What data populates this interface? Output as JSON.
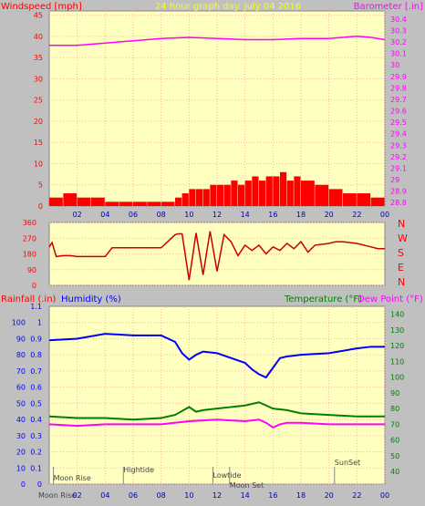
{
  "chart_data": [
    {
      "type": "line",
      "title": "24 hour graph day.  July 04 2016",
      "left_axis_label": "Windspeed [mph]",
      "right_axis_label": "Barometer [.in]",
      "x_ticks": [
        "02",
        "04",
        "06",
        "08",
        "10",
        "12",
        "14",
        "16",
        "18",
        "20",
        "22",
        "00"
      ],
      "y_left_ticks": [
        0,
        5,
        10,
        15,
        20,
        25,
        30,
        35,
        40,
        45
      ],
      "y_left_range": [
        0,
        46
      ],
      "y_right_ticks": [
        "28.8",
        "28.9",
        "29",
        "29.1",
        "29.2",
        "29.3",
        "29.4",
        "29.5",
        "29.6",
        "29.7",
        "29.8",
        "29.9",
        "30",
        "30.1",
        "30.2",
        "30.3",
        "30.4"
      ],
      "y_right_range": [
        28.77,
        30.47
      ],
      "grid": true,
      "series": [
        {
          "label_key": "left_axis_label",
          "color": "#ff0000",
          "style": "bars",
          "x": [
            0,
            1,
            2,
            3,
            4,
            5,
            6,
            7,
            8,
            9,
            9.5,
            10,
            10.5,
            11,
            11.5,
            12,
            12.5,
            13,
            13.5,
            14,
            14.5,
            15,
            15.5,
            16,
            16.5,
            17,
            17.5,
            18,
            19,
            20,
            21,
            22,
            23,
            24
          ],
          "y": [
            2,
            3,
            2,
            2,
            1,
            1,
            1,
            1,
            1,
            2,
            3,
            4,
            4,
            4,
            5,
            5,
            5,
            6,
            5,
            6,
            7,
            6,
            7,
            7,
            8,
            6,
            7,
            6,
            5,
            4,
            3,
            3,
            2,
            2
          ]
        },
        {
          "label_key": "right_axis_label",
          "color": "#ff00ff",
          "x": [
            0,
            2,
            4,
            6,
            8,
            10,
            12,
            14,
            16,
            18,
            20,
            22,
            23,
            24
          ],
          "y": [
            30.17,
            30.17,
            30.19,
            30.21,
            30.23,
            30.24,
            30.23,
            30.22,
            30.22,
            30.23,
            30.23,
            30.25,
            30.24,
            30.22
          ]
        }
      ]
    },
    {
      "type": "line",
      "title": "",
      "right_labels": [
        "N",
        "W",
        "S",
        "E",
        "N"
      ],
      "y_ticks": [
        0,
        90,
        180,
        270,
        360
      ],
      "y_range": [
        0,
        360
      ],
      "x_range": [
        0,
        24
      ],
      "grid": true,
      "series": [
        {
          "color": "#cc0000",
          "x": [
            0,
            0.2,
            0.5,
            1,
            1.5,
            2,
            3,
            4,
            4.5,
            5,
            6,
            7,
            8,
            9,
            9.2,
            9.5,
            10,
            10.5,
            11,
            11.5,
            12,
            12.5,
            13,
            13.5,
            14,
            14.5,
            15,
            15.5,
            16,
            16.5,
            17,
            17.5,
            18,
            18.5,
            19,
            20,
            20.5,
            21,
            22,
            23,
            23.5,
            24
          ],
          "y": [
            220,
            245,
            165,
            170,
            170,
            165,
            165,
            165,
            215,
            215,
            215,
            215,
            215,
            290,
            295,
            295,
            30,
            300,
            60,
            310,
            80,
            290,
            250,
            170,
            230,
            200,
            230,
            180,
            220,
            200,
            240,
            210,
            250,
            190,
            230,
            240,
            250,
            250,
            240,
            220,
            210,
            210
          ]
        }
      ]
    },
    {
      "type": "line",
      "title": "",
      "labels": {
        "rain": "Rainfall (.in)",
        "humidity": "Humidity (%)",
        "temp": "Temperature (°F)",
        "dew": "Dew Point (°F)"
      },
      "y_humidity_ticks": [
        0,
        10,
        20,
        30,
        40,
        50,
        60,
        70,
        80,
        90,
        100
      ],
      "y_rain_ticks": [
        "0",
        "0.1",
        "0.2",
        "0.3",
        "0.4",
        "0.5",
        "0.6",
        "0.7",
        "0.8",
        "0.9",
        "1",
        "1.1"
      ],
      "y_temp_ticks": [
        40,
        50,
        60,
        70,
        80,
        90,
        100,
        110,
        120,
        130,
        140
      ],
      "y_temp_range": [
        32,
        145
      ],
      "x_range": [
        0,
        24
      ],
      "grid": true,
      "events": [
        {
          "name": "Moon Rise",
          "x": 0.3
        },
        {
          "name": "Hightide",
          "x": 5.3
        },
        {
          "name": "Lowtide",
          "x": 11.7
        },
        {
          "name": "Moon Set",
          "x": 12.9
        },
        {
          "name": "SunSet",
          "x": 20.4
        }
      ],
      "footer_moonrise_label": "Moon Rise",
      "x_ticks": [
        "02",
        "04",
        "06",
        "08",
        "10",
        "12",
        "14",
        "16",
        "18",
        "20",
        "22",
        "00"
      ],
      "series": [
        {
          "label_key": "humidity",
          "color": "#0000ff",
          "x": [
            0,
            2,
            4,
            6,
            8,
            9,
            9.5,
            10,
            10.5,
            11,
            12,
            13,
            14,
            14.5,
            15,
            15.5,
            16,
            16.5,
            17,
            18,
            20,
            22,
            23,
            24
          ],
          "y": [
            89,
            90,
            93,
            92,
            92,
            88,
            81,
            77,
            80,
            82,
            81,
            78,
            75,
            71,
            68,
            66,
            72,
            78,
            79,
            80,
            81,
            84,
            85,
            85
          ]
        },
        {
          "label_key": "temp",
          "color": "#008000",
          "x": [
            0,
            2,
            4,
            6,
            8,
            9,
            10,
            10.5,
            11,
            12,
            13,
            14,
            15,
            16,
            17,
            18,
            20,
            22,
            24
          ],
          "y": [
            75,
            74,
            74,
            73,
            74,
            76,
            81,
            78,
            79,
            80,
            81,
            82,
            84,
            80,
            79,
            77,
            76,
            75,
            75
          ]
        },
        {
          "label_key": "dew",
          "color": "#ff00ff",
          "x": [
            0,
            2,
            4,
            6,
            8,
            10,
            12,
            14,
            15,
            15.5,
            16,
            16.5,
            17,
            18,
            20,
            22,
            24
          ],
          "y": [
            70,
            69,
            70,
            70,
            70,
            72,
            73,
            72,
            73,
            71,
            68,
            70,
            71,
            71,
            70,
            70,
            70
          ]
        }
      ]
    }
  ]
}
